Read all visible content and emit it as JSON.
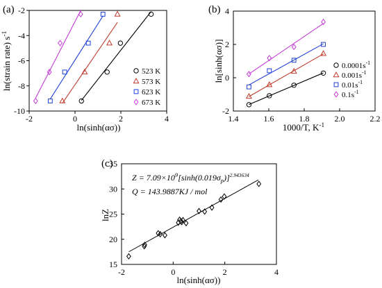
{
  "chart_data": [
    {
      "panel": "(a)",
      "type": "scatter",
      "fit_lines": true,
      "xlabel": "ln(sinh(ασ))",
      "ylabel": "ln(strain rate) s-1",
      "ylabel_main": "ln(strain rate) s",
      "ylabel_sup": "-1",
      "xlim": [
        -2,
        4
      ],
      "ylim": [
        -10,
        -2
      ],
      "xticks": [
        "-2",
        "0",
        "2",
        "4"
      ],
      "yticks": [
        "-2",
        "-4",
        "-6",
        "-8",
        "-10"
      ],
      "legend_position": "right",
      "series": [
        {
          "name": "523 K",
          "marker": "circle",
          "color": "#000000",
          "x": [
            0.28,
            1.4,
            1.98,
            3.32
          ],
          "y": [
            -9.2,
            -6.9,
            -4.6,
            -2.3
          ]
        },
        {
          "name": "573 K",
          "marker": "triangle",
          "color": "#c0392b",
          "x": [
            -0.55,
            0.42,
            1.5,
            1.85
          ],
          "y": [
            -9.2,
            -6.9,
            -4.6,
            -2.3
          ]
        },
        {
          "name": "623 K",
          "marker": "square",
          "color": "#1f3fd6",
          "x": [
            -1.08,
            -0.45,
            0.58,
            1.22
          ],
          "y": [
            -9.2,
            -6.9,
            -4.6,
            -2.3
          ]
        },
        {
          "name": "673 K",
          "marker": "diamond",
          "color": "#c43bd6",
          "x": [
            -1.72,
            -1.12,
            -0.65,
            0.25
          ],
          "y": [
            -9.2,
            -6.9,
            -4.6,
            -2.3
          ]
        }
      ]
    },
    {
      "panel": "(b)",
      "type": "scatter",
      "fit_lines": true,
      "xlabel": "1000/T, K-1",
      "xlabel_main": "1000/T, K",
      "xlabel_sup": "-1",
      "ylabel": "ln[sinh(ασ)]",
      "xlim": [
        1.4,
        2.2
      ],
      "ylim": [
        -2,
        4
      ],
      "xticks": [
        "1.4",
        "1.6",
        "1.8",
        "2.0",
        "2.2"
      ],
      "yticks": [
        "-2",
        "0",
        "2",
        "4"
      ],
      "legend_position": "right",
      "series": [
        {
          "name": "0.0001s-1",
          "name_main": "0.0001s",
          "name_sup": "-1",
          "marker": "circle",
          "color": "#000000",
          "x": [
            1.488,
            1.603,
            1.742,
            1.908
          ],
          "y": [
            -1.62,
            -1.08,
            -0.45,
            0.28
          ]
        },
        {
          "name": "0.001s-1",
          "name_main": "0.001s",
          "name_sup": "-1",
          "marker": "triangle",
          "color": "#c0392b",
          "x": [
            1.488,
            1.603,
            1.742,
            1.908
          ],
          "y": [
            -1.12,
            -0.42,
            0.38,
            1.45
          ]
        },
        {
          "name": "0.01s-1",
          "name_main": "0.01s",
          "name_sup": "-1",
          "marker": "square",
          "color": "#1f3fd6",
          "x": [
            1.488,
            1.603,
            1.742,
            1.908
          ],
          "y": [
            -0.55,
            0.42,
            1.05,
            2.0
          ]
        },
        {
          "name": "0.1s-1",
          "name_main": "0.1s",
          "name_sup": "-1",
          "marker": "diamond",
          "color": "#c43bd6",
          "x": [
            1.488,
            1.603,
            1.742,
            1.908
          ],
          "y": [
            0.22,
            1.18,
            1.85,
            3.35
          ]
        }
      ]
    },
    {
      "panel": "(c)",
      "type": "scatter",
      "fit_lines": true,
      "xlabel": "ln(sinh(ασ))",
      "ylabel": "lnZ",
      "xlim": [
        -2,
        4
      ],
      "ylim": [
        15,
        35
      ],
      "xticks": [
        "-2",
        "0",
        "2",
        "4"
      ],
      "yticks": [
        "15",
        "20",
        "25",
        "30",
        "35"
      ],
      "annotations": [
        "Z = 7.09×10^9[sinh(0.019σp)]^2.943634",
        "Q = 143.9887KJ / mol"
      ],
      "annotation_parts": {
        "z_lhs": "Z = 7.09×10",
        "z_exp1": "9",
        "z_mid": "[sinh(0.019σ",
        "z_sub": "p",
        "z_close": ")]",
        "z_exp2": "2.943634",
        "q_line": "Q = 143.9887KJ / mol"
      },
      "series": [
        {
          "name": "",
          "marker": "diamond",
          "color": "#000000",
          "x": [
            -1.72,
            -1.12,
            -1.1,
            -0.58,
            -0.5,
            -0.32,
            0.2,
            0.25,
            0.3,
            0.33,
            0.38,
            0.5,
            1.0,
            1.22,
            1.5,
            1.85,
            1.98,
            3.32
          ],
          "y": [
            16.6,
            18.6,
            18.9,
            21.2,
            21.0,
            20.8,
            23.3,
            23.9,
            23.6,
            23.4,
            23.8,
            23.2,
            25.6,
            25.5,
            26.3,
            27.9,
            28.5,
            31.0
          ]
        }
      ],
      "fit": {
        "x1": -1.72,
        "y1": 17.5,
        "x2": 3.3,
        "y2": 31.8
      }
    }
  ]
}
